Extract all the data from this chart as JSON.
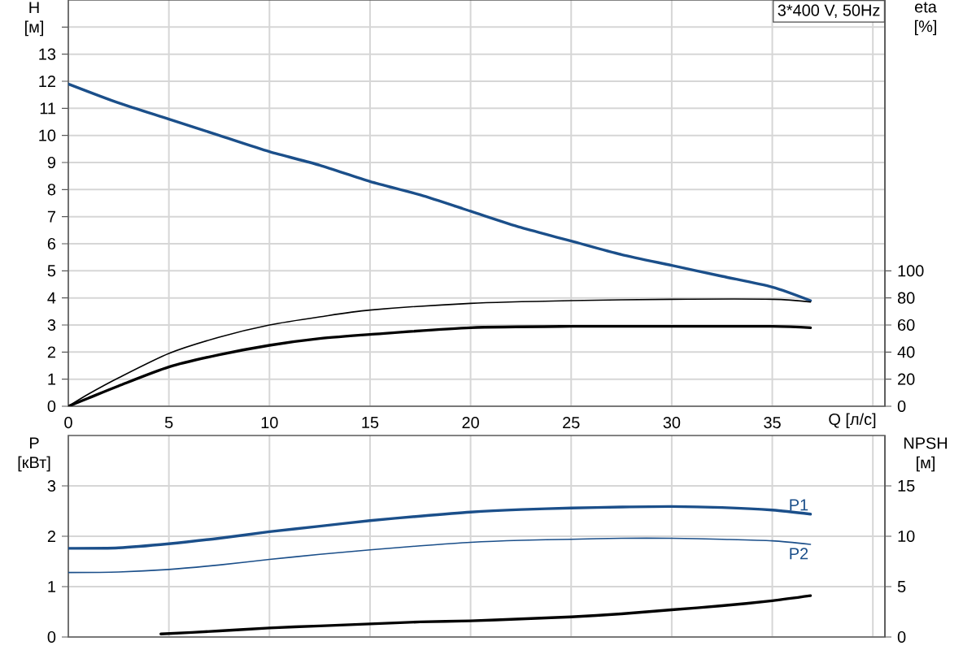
{
  "chart_data": [
    {
      "type": "line",
      "xlabel": "Q [л/с]",
      "ylabel": "H [м]",
      "y2label": "eta [%]",
      "annotations": [
        "3*400 V, 50Hz"
      ],
      "xlim": [
        0,
        40.6
      ],
      "xticks": [
        0,
        5,
        10,
        15,
        20,
        25,
        30,
        35,
        {
          "value": 40,
          "label": null
        }
      ],
      "ylim": [
        0,
        15
      ],
      "yticks": [
        0,
        1,
        2,
        3,
        4,
        5,
        6,
        7,
        8,
        9,
        10,
        11,
        12,
        13,
        {
          "value": 14,
          "label": null
        }
      ],
      "y2lim": [
        0,
        300
      ],
      "y2ticks": [
        0,
        20,
        40,
        60,
        80,
        100
      ],
      "grid": true,
      "series": [
        {
          "color": "#1b4f8a",
          "x": [
            0,
            2.5,
            5,
            7.5,
            10,
            12.5,
            15,
            17.5,
            20,
            22.5,
            25,
            27.5,
            30,
            32.5,
            35,
            36.9
          ],
          "values": [
            11.9,
            11.2,
            10.6,
            10.0,
            9.4,
            8.9,
            8.3,
            7.8,
            7.2,
            6.6,
            6.1,
            5.6,
            5.2,
            4.8,
            4.4,
            3.9
          ]
        },
        {
          "color": "#000000",
          "axis": "y2",
          "x": [
            0,
            1,
            2.5,
            5,
            7.5,
            10,
            12.5,
            15,
            20,
            25,
            30,
            35,
            36.9
          ],
          "values": [
            0,
            9,
            21,
            39,
            51,
            60,
            66,
            71,
            76,
            78,
            79,
            79,
            77
          ]
        },
        {
          "color": "#000000",
          "axis": "y2",
          "x": [
            0,
            1,
            2.5,
            5,
            7.5,
            10,
            12.5,
            15,
            20,
            25,
            30,
            35,
            36.9
          ],
          "values": [
            0,
            6,
            15,
            29,
            38,
            45,
            50,
            53,
            58,
            59,
            59,
            59,
            58
          ]
        }
      ]
    },
    {
      "type": "line",
      "ylabel": "P [кВт]",
      "y2label": "NPSH [м]",
      "tick_labels": "y",
      "xlim": [
        0,
        40.6
      ],
      "xticks": [
        0,
        5,
        10,
        15,
        20,
        25,
        30,
        35,
        40
      ],
      "ylim": [
        0,
        4
      ],
      "yticks": [
        0,
        1,
        2,
        3
      ],
      "y2lim": [
        0,
        20
      ],
      "y2ticks": [
        0,
        5,
        10,
        15
      ],
      "grid": true,
      "series": [
        {
          "name": "P1",
          "color": "#1b4f8a",
          "x": [
            0,
            2.5,
            5,
            7.5,
            10,
            12.5,
            15,
            17.5,
            20,
            22.5,
            25,
            27.5,
            30,
            32.5,
            35,
            36.9
          ],
          "values": [
            1.76,
            1.77,
            1.85,
            1.96,
            2.09,
            2.2,
            2.31,
            2.4,
            2.48,
            2.53,
            2.56,
            2.58,
            2.59,
            2.57,
            2.52,
            2.44
          ]
        },
        {
          "name": "P2",
          "color": "#1b4f8a",
          "x": [
            0,
            2.5,
            5,
            7.5,
            10,
            12.5,
            15,
            17.5,
            20,
            22.5,
            25,
            27.5,
            30,
            32.5,
            35,
            36.9
          ],
          "values": [
            1.28,
            1.29,
            1.34,
            1.43,
            1.54,
            1.64,
            1.73,
            1.81,
            1.88,
            1.92,
            1.94,
            1.96,
            1.96,
            1.94,
            1.91,
            1.84
          ]
        },
        {
          "color": "#000000",
          "axis": "y2",
          "x": [
            4.6,
            7.5,
            10,
            12.5,
            15,
            17.5,
            20,
            22.5,
            25,
            27.5,
            30,
            32.5,
            35,
            36.9
          ],
          "values": [
            0.3,
            0.6,
            0.9,
            1.1,
            1.3,
            1.5,
            1.6,
            1.8,
            2.0,
            2.3,
            2.7,
            3.1,
            3.6,
            4.1
          ]
        }
      ]
    }
  ]
}
